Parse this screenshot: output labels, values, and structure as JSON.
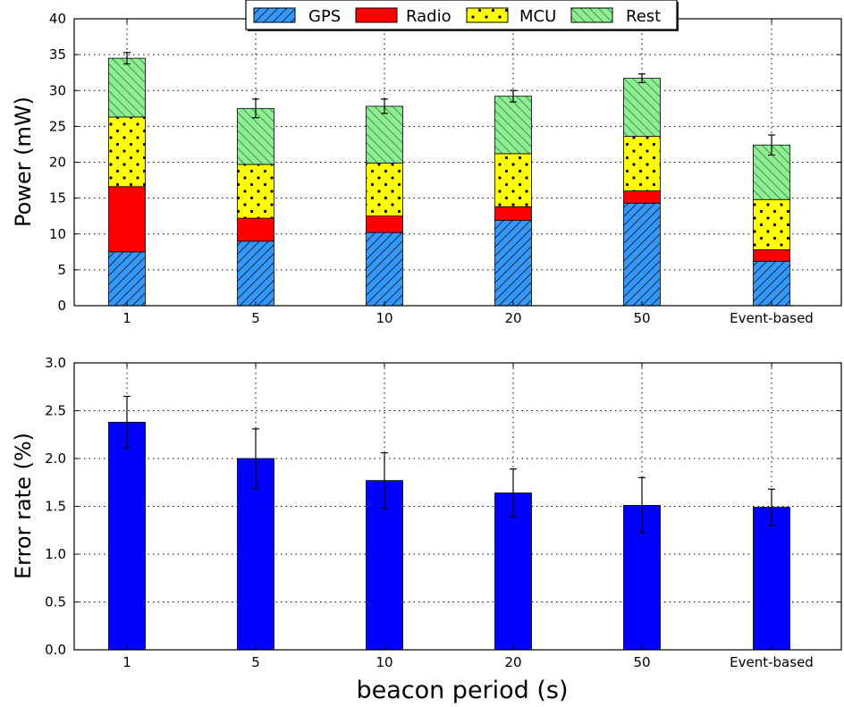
{
  "chart_data": [
    {
      "type": "bar",
      "stacked": true,
      "title": "",
      "xlabel": "",
      "ylabel": "Power (mW)",
      "categories": [
        "1",
        "5",
        "10",
        "20",
        "50",
        "Event-based"
      ],
      "ylim": [
        0,
        40
      ],
      "yticks": [
        "0",
        "5",
        "10",
        "15",
        "20",
        "25",
        "30",
        "35",
        "40"
      ],
      "grid": true,
      "legend_position": "top-center",
      "series": [
        {
          "name": "GPS",
          "color": "#3399ff",
          "pattern": "diagonal-hatch",
          "values": [
            7.5,
            9.0,
            10.2,
            11.9,
            14.3,
            6.2
          ]
        },
        {
          "name": "Radio",
          "color": "#ff0000",
          "pattern": "solid",
          "values": [
            9.1,
            3.2,
            2.3,
            1.9,
            1.7,
            1.6
          ]
        },
        {
          "name": "MCU",
          "color": "#ffff00",
          "pattern": "dots",
          "values": [
            9.7,
            7.5,
            7.4,
            7.4,
            7.6,
            7.0
          ]
        },
        {
          "name": "Rest",
          "color": "#90ee90",
          "pattern": "back-diagonal-hatch",
          "values": [
            8.2,
            7.8,
            7.9,
            8.0,
            8.1,
            7.6
          ]
        }
      ],
      "totals": [
        34.5,
        27.5,
        27.8,
        29.2,
        31.7,
        22.4
      ],
      "errors": [
        0.8,
        1.3,
        1.0,
        0.8,
        0.6,
        1.4
      ]
    },
    {
      "type": "bar",
      "title": "",
      "xlabel": "beacon period (s)",
      "ylabel": "Error rate (%)",
      "categories": [
        "1",
        "5",
        "10",
        "20",
        "50",
        "Event-based"
      ],
      "ylim": [
        0.0,
        3.0
      ],
      "yticks": [
        "0.0",
        "0.5",
        "1.0",
        "1.5",
        "2.0",
        "2.5",
        "3.0"
      ],
      "grid": true,
      "color": "#0000ff",
      "values": [
        2.38,
        2.0,
        1.77,
        1.64,
        1.51,
        1.49
      ],
      "errors": [
        0.27,
        0.31,
        0.29,
        0.25,
        0.29,
        0.19
      ]
    }
  ]
}
